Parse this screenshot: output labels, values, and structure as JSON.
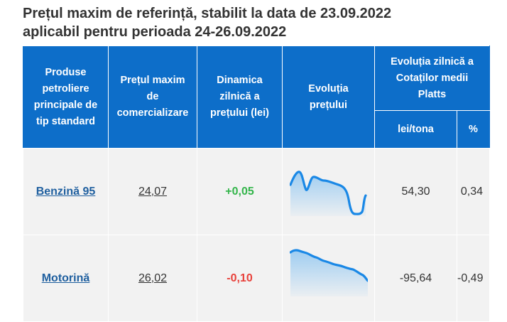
{
  "title_line1": "Prețul maxim de referință, stabilit la data de 23.09.2022",
  "title_line2": "aplicabil pentru perioada 24-26.09.2022",
  "headers": {
    "product": [
      "Produse",
      "petroliere",
      "principale de",
      "tip standard"
    ],
    "max_price": [
      "Prețul maxim",
      "de",
      "comercializare"
    ],
    "dynamics": [
      "Dinamica",
      "zilnică a",
      "prețului (lei)"
    ],
    "evolution": [
      "Evoluția",
      "prețului"
    ],
    "platts": [
      "Evoluția zilnică a",
      "Cotaților medii",
      "Platts"
    ],
    "unit_lei_tona": "lei/tona",
    "unit_percent": "%"
  },
  "rows": [
    {
      "product": "Benzină 95",
      "price": "24,07",
      "change": "+0,05",
      "change_sign": "positive",
      "platts_lei_tona": "54,30",
      "platts_percent": "0,34"
    },
    {
      "product": "Motorină",
      "price": "26,02",
      "change": "-0,10",
      "change_sign": "negative",
      "platts_lei_tona": "-95,64",
      "platts_percent": "-0,49"
    }
  ],
  "colors": {
    "header_bg": "#0d6ec9",
    "row_bg": "#f2f2f2",
    "positive": "#33b54a",
    "negative": "#e8403a",
    "spark_line": "#1a88e6"
  }
}
